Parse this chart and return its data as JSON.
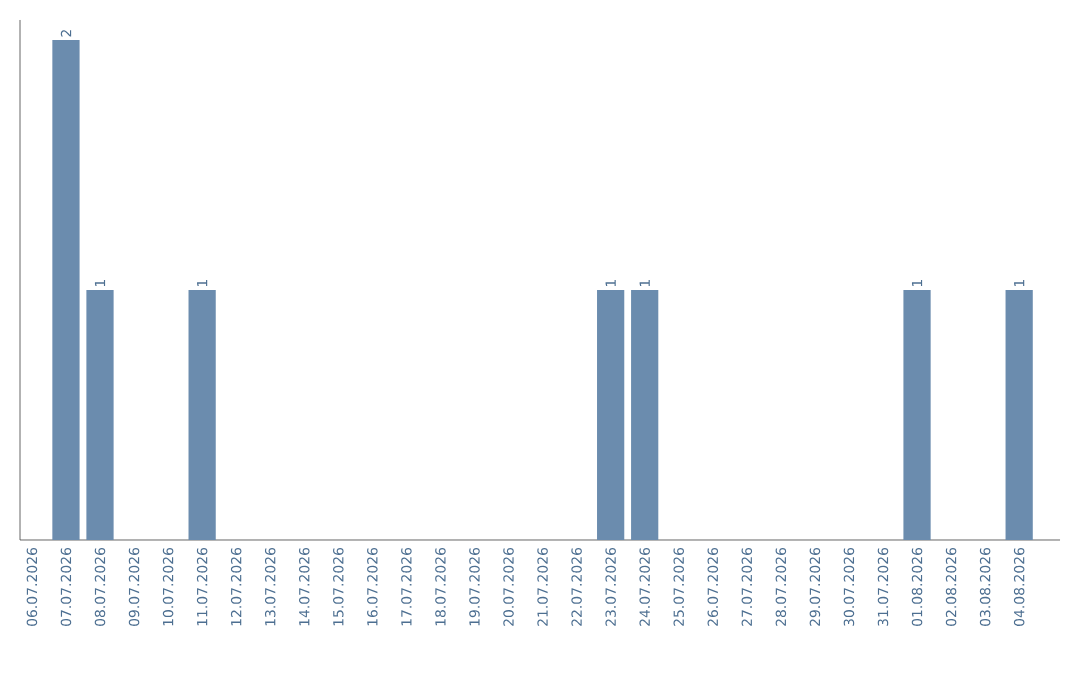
{
  "chart_data": {
    "type": "bar",
    "categories": [
      "06.07.2026",
      "07.07.2026",
      "08.07.2026",
      "09.07.2026",
      "10.07.2026",
      "11.07.2026",
      "12.07.2026",
      "13.07.2026",
      "14.07.2026",
      "15.07.2026",
      "16.07.2026",
      "17.07.2026",
      "18.07.2026",
      "19.07.2026",
      "20.07.2026",
      "21.07.2026",
      "22.07.2026",
      "23.07.2026",
      "24.07.2026",
      "25.07.2026",
      "26.07.2026",
      "27.07.2026",
      "28.07.2026",
      "29.07.2026",
      "30.07.2026",
      "31.07.2026",
      "01.08.2026",
      "02.08.2026",
      "03.08.2026",
      "04.08.2026"
    ],
    "values": [
      0,
      2,
      1,
      0,
      0,
      1,
      0,
      0,
      0,
      0,
      0,
      0,
      0,
      0,
      0,
      0,
      0,
      1,
      1,
      0,
      0,
      0,
      0,
      0,
      0,
      0,
      1,
      0,
      0,
      1
    ],
    "value_labels": [
      null,
      "2",
      "1",
      null,
      null,
      "1",
      null,
      null,
      null,
      null,
      null,
      null,
      null,
      null,
      null,
      null,
      null,
      "1",
      "1",
      null,
      null,
      null,
      null,
      null,
      null,
      null,
      "1",
      null,
      null,
      "1"
    ],
    "color": "#6b8cae"
  }
}
